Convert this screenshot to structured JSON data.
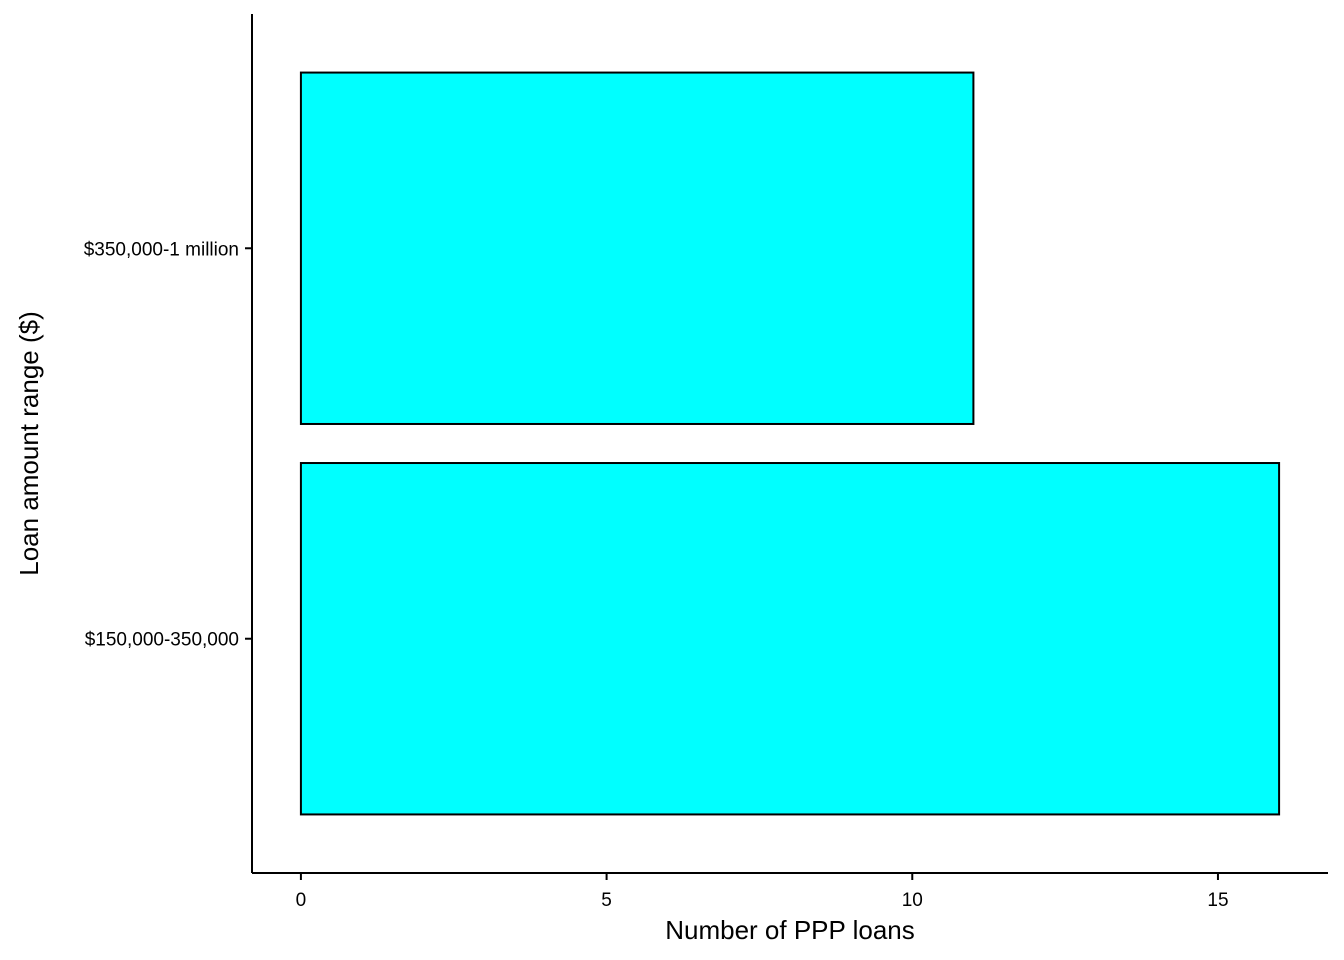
{
  "chart_data": {
    "type": "bar",
    "orientation": "horizontal",
    "title": "",
    "xlabel": "Number of PPP loans",
    "ylabel": "Loan amount range ($)",
    "categories": [
      "$150,000-350,000",
      "$350,000-1 million"
    ],
    "values": [
      16,
      11
    ],
    "xlim": [
      -0.8,
      16.8
    ],
    "xticks": [
      0,
      5,
      10,
      15
    ],
    "grid": false,
    "legend": "none",
    "bar_color": "#00FFFF",
    "bar_outline": "#000000"
  }
}
